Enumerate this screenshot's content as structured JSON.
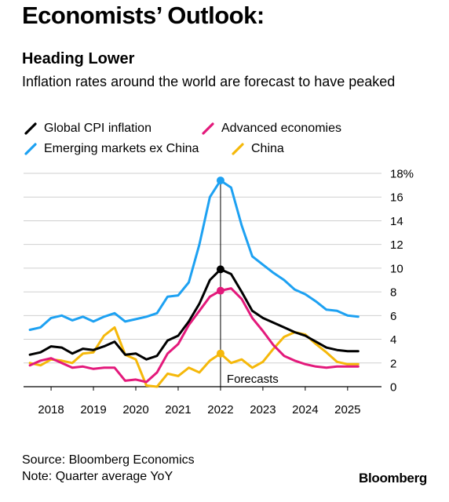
{
  "headline": "Economists’ Outlook:",
  "chart_data": {
    "type": "line",
    "title": "Heading Lower",
    "subtitle": "Inflation rates around the world are forecast to have peaked",
    "xlabel": "",
    "ylabel": "",
    "x_tick_labels": [
      "2018",
      "2019",
      "2020",
      "2021",
      "2022",
      "2023",
      "2024",
      "2025"
    ],
    "y_tick_labels": [
      "18%",
      "16",
      "14",
      "12",
      "10",
      "8",
      "6",
      "4",
      "2",
      "0"
    ],
    "ylim": [
      0,
      18
    ],
    "grid": true,
    "legend_position": "top",
    "annotation": "Forecasts",
    "forecast_start_x": 2022.5,
    "x": [
      2018.0,
      2018.25,
      2018.5,
      2018.75,
      2019.0,
      2019.25,
      2019.5,
      2019.75,
      2020.0,
      2020.25,
      2020.5,
      2020.75,
      2021.0,
      2021.25,
      2021.5,
      2021.75,
      2022.0,
      2022.25,
      2022.5,
      2022.75,
      2023.0,
      2023.25,
      2023.5,
      2023.75,
      2024.0,
      2024.25,
      2024.5,
      2024.75,
      2025.0,
      2025.25,
      2025.5,
      2025.75
    ],
    "series": [
      {
        "name": "Global CPI inflation",
        "color": "#000000",
        "values": [
          2.7,
          2.9,
          3.4,
          3.3,
          2.8,
          3.2,
          3.1,
          3.4,
          3.8,
          2.7,
          2.8,
          2.3,
          2.6,
          3.9,
          4.3,
          5.5,
          7.0,
          9.0,
          9.9,
          9.5,
          8.0,
          6.4,
          5.8,
          5.4,
          5.0,
          4.6,
          4.3,
          3.8,
          3.3,
          3.1,
          3.0,
          3.0
        ]
      },
      {
        "name": "Advanced economies",
        "color": "#e3197b",
        "values": [
          1.8,
          2.2,
          2.4,
          2.0,
          1.6,
          1.7,
          1.5,
          1.6,
          1.6,
          0.5,
          0.6,
          0.4,
          1.2,
          2.8,
          3.6,
          5.2,
          6.4,
          7.6,
          8.1,
          8.3,
          7.4,
          5.8,
          4.7,
          3.5,
          2.6,
          2.2,
          1.9,
          1.7,
          1.6,
          1.7,
          1.7,
          1.7
        ]
      },
      {
        "name": "Emerging markets ex China",
        "color": "#1da1f2",
        "values": [
          4.8,
          5.0,
          5.8,
          6.0,
          5.6,
          5.9,
          5.5,
          5.9,
          6.2,
          5.5,
          5.7,
          5.9,
          6.2,
          7.6,
          7.7,
          8.8,
          12.0,
          16.0,
          17.4,
          16.8,
          13.6,
          11.0,
          10.3,
          9.6,
          9.0,
          8.2,
          7.8,
          7.2,
          6.5,
          6.4,
          6.0,
          5.9
        ]
      },
      {
        "name": "China",
        "color": "#f5b80a",
        "values": [
          2.0,
          1.8,
          2.3,
          2.2,
          2.0,
          2.8,
          2.9,
          4.3,
          5.0,
          2.7,
          2.3,
          0.1,
          0.0,
          1.1,
          0.9,
          1.6,
          1.2,
          2.2,
          2.8,
          2.0,
          2.3,
          1.6,
          2.1,
          3.2,
          4.2,
          4.6,
          4.4,
          3.6,
          2.9,
          2.1,
          1.9,
          1.9
        ]
      }
    ],
    "markers": [
      {
        "series": "Emerging markets ex China",
        "x": 2022.5,
        "y": 17.4
      },
      {
        "series": "Global CPI inflation",
        "x": 2022.5,
        "y": 9.9
      },
      {
        "series": "Advanced economies",
        "x": 2022.5,
        "y": 8.1
      },
      {
        "series": "China",
        "x": 2022.5,
        "y": 2.8
      }
    ]
  },
  "footer": {
    "source": "Source: Bloomberg Economics",
    "note": "Note: Quarter average YoY",
    "brand": "Bloomberg"
  }
}
